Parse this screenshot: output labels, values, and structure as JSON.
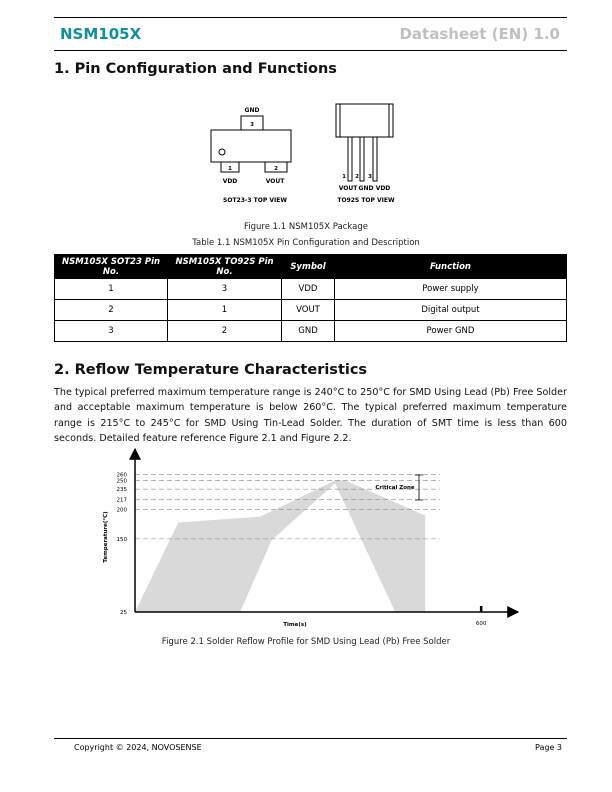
{
  "header": {
    "product": "NSM105X",
    "document": "Datasheet (EN) 1.0"
  },
  "section1": {
    "title": "1. Pin Configuration and Functions",
    "figure": {
      "sot23": {
        "pins": [
          "3",
          "1",
          "2"
        ],
        "labels": [
          "GND",
          "VDD",
          "VOUT"
        ],
        "view": "SOT23-3 TOP VIEW"
      },
      "to92": {
        "pins": [
          "1",
          "2",
          "3"
        ],
        "labels": [
          "VOUT",
          "GND",
          "VDD"
        ],
        "view": "TO92S TOP VIEW"
      },
      "caption": "Figure 1.1 NSM105X Package"
    },
    "table": {
      "caption": "Table 1.1 NSM105X Pin Configuration and Description",
      "headers": [
        "NSM105X SOT23 Pin No.",
        "NSM105X TO92S Pin No.",
        "Symbol",
        "Function"
      ],
      "rows": [
        [
          "1",
          "3",
          "VDD",
          "Power supply"
        ],
        [
          "2",
          "1",
          "VOUT",
          "Digital output"
        ],
        [
          "3",
          "2",
          "GND",
          "Power GND"
        ]
      ]
    }
  },
  "section2": {
    "title": "2. Reflow Temperature Characteristics",
    "paragraph": "The typical preferred maximum temperature range is 240°C to 250°C for SMD Using Lead (Pb) Free Solder and acceptable maximum temperature is below 260°C. The typical preferred maximum temperature range is 215°C to 245°C for SMD Using Tin-Lead Solder. The duration of SMT time is less than 600 seconds. Detailed feature reference Figure 2.1 and Figure 2.2.",
    "caption": "Figure 2.1 Solder Reflow Profile for SMD Using Lead (Pb) Free Solder"
  },
  "chart_data": {
    "type": "area",
    "x_label": "Time(s)",
    "y_label": "Temperature(°C)",
    "annotation": "Critical Zone",
    "xlim": [
      0,
      650
    ],
    "ylim": [
      25,
      290
    ],
    "xticks": [
      600
    ],
    "yticks": [
      25,
      150,
      200,
      217,
      235,
      250,
      260
    ],
    "grid": true,
    "series": [
      {
        "color": "#d9d9d9",
        "x": [
          0,
          75,
          217,
          347,
          364,
          503
        ],
        "values": [
          25,
          178,
          188,
          250,
          250,
          190
        ]
      },
      {
        "color": "#ffffff",
        "x": [
          0,
          182,
          237,
          347,
          451,
          503
        ],
        "values": [
          25,
          25,
          148,
          245,
          25,
          25
        ]
      }
    ]
  },
  "footer": {
    "copyright": "Copyright © 2024, NOVOSENSE",
    "page": "Page 3"
  }
}
